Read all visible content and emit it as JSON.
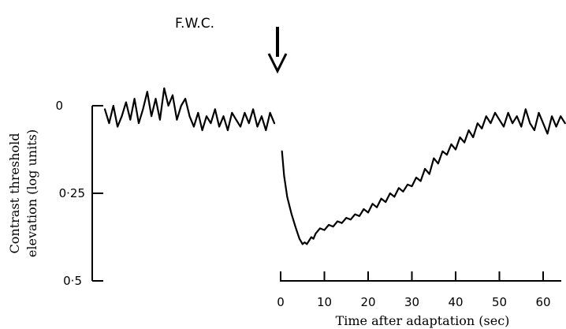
{
  "chart_data": {
    "type": "line",
    "subject": "F.W.C.",
    "xlabel": "Time after adaptation (sec)",
    "ylabel_line1": "Contrast threshold",
    "ylabel_line2": "elevation (log units)",
    "x_ticks": [
      "0",
      "10",
      "20",
      "30",
      "40",
      "50",
      "60"
    ],
    "y_ticks": [
      "0",
      "0·25",
      "0·5"
    ],
    "xlim": [
      0,
      65
    ],
    "ylim": [
      0,
      0.5
    ],
    "y_inverted": true,
    "adaptation_marker": "arrow",
    "series": [
      {
        "segment": "baseline",
        "x": [
          -40,
          -39,
          -38,
          -37,
          -36,
          -35,
          -34,
          -33,
          -32,
          -31,
          -30,
          -29,
          -28,
          -27,
          -26,
          -25,
          -24,
          -23,
          -22,
          -21,
          -20,
          -19,
          -18,
          -17,
          -16,
          -15,
          -14,
          -13,
          -12,
          -11,
          -10,
          -9,
          -8,
          -7,
          -6,
          -5,
          -4,
          -3,
          -2,
          -1,
          0
        ],
        "values": [
          0.01,
          0.05,
          0.0,
          0.06,
          0.03,
          -0.01,
          0.04,
          -0.02,
          0.05,
          0.01,
          -0.04,
          0.03,
          -0.02,
          0.04,
          -0.05,
          0.0,
          -0.03,
          0.04,
          0.0,
          -0.02,
          0.03,
          0.06,
          0.02,
          0.07,
          0.03,
          0.05,
          0.01,
          0.06,
          0.03,
          0.07,
          0.02,
          0.04,
          0.06,
          0.02,
          0.05,
          0.01,
          0.06,
          0.03,
          0.07,
          0.02,
          0.05
        ]
      },
      {
        "segment": "recovery",
        "x": [
          0.3,
          0.8,
          1.5,
          2.5,
          3.5,
          4.3,
          5.0,
          5.5,
          6.0,
          6.5,
          7.0,
          7.5,
          8.0,
          9.0,
          10.0,
          11.0,
          12.0,
          13.0,
          14.0,
          15.0,
          16.0,
          17.0,
          18.0,
          19.0,
          20.0,
          21.0,
          22.0,
          23.0,
          24.0,
          25.0,
          26.0,
          27.0,
          28.0,
          29.0,
          30.0,
          31.0,
          32.0,
          33.0,
          34.0,
          35.0,
          36.0,
          37.0,
          38.0,
          39.0,
          40.0,
          41.0,
          42.0,
          43.0,
          44.0,
          45.0,
          46.0,
          47.0,
          48.0,
          49.0,
          50.0,
          51.0,
          52.0,
          53.0,
          54.0,
          55.0,
          56.0,
          57.0,
          58.0,
          59.0,
          60.0,
          61.0,
          62.0,
          63.0,
          64.0,
          65.0
        ],
        "values": [
          0.13,
          0.2,
          0.26,
          0.31,
          0.35,
          0.38,
          0.395,
          0.39,
          0.395,
          0.385,
          0.375,
          0.38,
          0.365,
          0.35,
          0.355,
          0.34,
          0.345,
          0.33,
          0.335,
          0.32,
          0.325,
          0.31,
          0.315,
          0.295,
          0.305,
          0.28,
          0.29,
          0.265,
          0.275,
          0.25,
          0.26,
          0.235,
          0.245,
          0.225,
          0.23,
          0.205,
          0.215,
          0.18,
          0.195,
          0.15,
          0.165,
          0.13,
          0.14,
          0.11,
          0.125,
          0.09,
          0.105,
          0.07,
          0.09,
          0.05,
          0.065,
          0.03,
          0.05,
          0.02,
          0.04,
          0.06,
          0.02,
          0.05,
          0.03,
          0.06,
          0.01,
          0.05,
          0.07,
          0.02,
          0.05,
          0.08,
          0.03,
          0.06,
          0.03,
          0.05
        ]
      }
    ]
  }
}
